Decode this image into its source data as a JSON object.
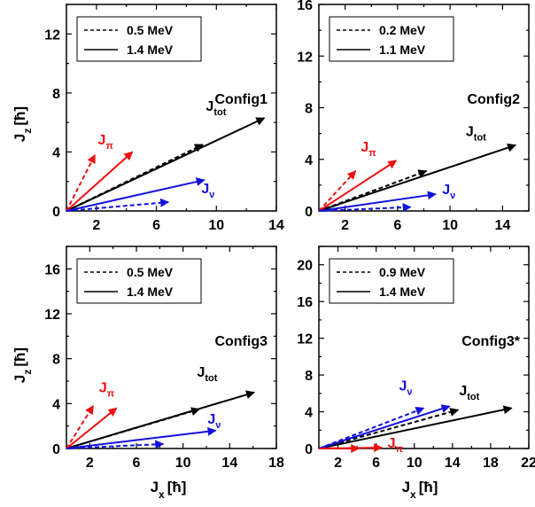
{
  "figure": {
    "ylabel": "J",
    "ylabel_sub": "z",
    "ylabel_unit": "[ħ]",
    "xlabel": "J",
    "xlabel_sub": "x",
    "xlabel_unit": "[ħ]"
  },
  "chart_data": [
    {
      "type": "line",
      "title": "Config1",
      "xlim": [
        0,
        14
      ],
      "ylim": [
        0,
        14
      ],
      "xticks": [
        2,
        6,
        10,
        14
      ],
      "yticks": [
        0,
        4,
        8,
        12
      ],
      "legend": {
        "placement": "top-left",
        "entries": [
          {
            "style": "dashed",
            "label": "0.5 MeV"
          },
          {
            "style": "solid",
            "label": "1.4 MeV"
          }
        ]
      },
      "vectors": [
        {
          "name": "J",
          "sub": "tot",
          "color": "#000000",
          "dashed": [
            9.1,
            4.5
          ],
          "solid": [
            13.2,
            6.3
          ],
          "label_pos": [
            9.3,
            6.8
          ]
        },
        {
          "name": "J",
          "sub": "π",
          "color": "#ee1111",
          "dashed": [
            1.9,
            3.8
          ],
          "solid": [
            4.4,
            4.0
          ],
          "label_pos": [
            2.1,
            4.5
          ]
        },
        {
          "name": "J",
          "sub": "ν",
          "color": "#1111dd",
          "dashed": [
            6.8,
            0.6
          ],
          "solid": [
            9.2,
            2.1
          ],
          "label_pos": [
            9.0,
            1.2
          ]
        }
      ]
    },
    {
      "type": "line",
      "title": "Config2",
      "xlim": [
        0,
        16
      ],
      "ylim": [
        0,
        16
      ],
      "xticks": [
        2,
        6,
        10,
        14
      ],
      "yticks": [
        0,
        4,
        8,
        12,
        16
      ],
      "legend": {
        "placement": "top-left",
        "entries": [
          {
            "style": "dashed",
            "label": "0.2 MeV"
          },
          {
            "style": "solid",
            "label": "1.1 MeV"
          }
        ]
      },
      "vectors": [
        {
          "name": "J",
          "sub": "tot",
          "color": "#000000",
          "dashed": [
            8.2,
            3.1
          ],
          "solid": [
            15.0,
            5.1
          ],
          "label_pos": [
            11.2,
            5.8
          ]
        },
        {
          "name": "J",
          "sub": "π",
          "color": "#ee1111",
          "dashed": [
            2.8,
            3.1
          ],
          "solid": [
            5.9,
            3.9
          ],
          "label_pos": [
            3.2,
            4.6
          ]
        },
        {
          "name": "J",
          "sub": "ν",
          "color": "#1111dd",
          "dashed": [
            7.0,
            0.3
          ],
          "solid": [
            8.9,
            1.3
          ],
          "label_pos": [
            9.4,
            1.3
          ]
        }
      ]
    },
    {
      "type": "line",
      "title": "Config3",
      "xlim": [
        0,
        18
      ],
      "ylim": [
        0,
        18
      ],
      "xticks": [
        2,
        6,
        10,
        14,
        18
      ],
      "yticks": [
        0,
        4,
        8,
        12,
        16
      ],
      "legend": {
        "placement": "top-left",
        "entries": [
          {
            "style": "dashed",
            "label": "0.5 MeV"
          },
          {
            "style": "solid",
            "label": "1.4 MeV"
          }
        ]
      },
      "vectors": [
        {
          "name": "J",
          "sub": "tot",
          "color": "#000000",
          "dashed": [
            11.4,
            3.5
          ],
          "solid": [
            16.1,
            5.0
          ],
          "label_pos": [
            11.2,
            6.4
          ]
        },
        {
          "name": "J",
          "sub": "π",
          "color": "#ee1111",
          "dashed": [
            2.3,
            3.8
          ],
          "solid": [
            4.3,
            3.6
          ],
          "label_pos": [
            2.8,
            5.0
          ]
        },
        {
          "name": "J",
          "sub": "ν",
          "color": "#1111dd",
          "dashed": [
            8.3,
            0.4
          ],
          "solid": [
            12.8,
            1.6
          ],
          "label_pos": [
            12.1,
            2.2
          ]
        }
      ]
    },
    {
      "type": "line",
      "title": "Config3*",
      "xlim": [
        0,
        22
      ],
      "ylim": [
        0,
        22
      ],
      "xticks": [
        2,
        6,
        10,
        14,
        18,
        22
      ],
      "yticks": [
        0,
        4,
        8,
        12,
        16,
        20
      ],
      "legend": {
        "placement": "top-left",
        "entries": [
          {
            "style": "dashed",
            "label": "0.9 MeV"
          },
          {
            "style": "solid",
            "label": "1.4 MeV"
          }
        ]
      },
      "vectors": [
        {
          "name": "J",
          "sub": "tot",
          "color": "#000000",
          "dashed": [
            14.6,
            4.2
          ],
          "solid": [
            20.2,
            4.4
          ],
          "label_pos": [
            14.7,
            5.8
          ]
        },
        {
          "name": "J",
          "sub": "ν",
          "color": "#1111dd",
          "dashed": [
            11.0,
            4.4
          ],
          "solid": [
            13.7,
            4.6
          ],
          "label_pos": [
            8.4,
            6.3
          ]
        },
        {
          "name": "J",
          "sub": "π",
          "color": "#ee1111",
          "dashed": [
            4.2,
            0.0
          ],
          "solid": [
            6.6,
            0.1
          ],
          "label_pos": [
            7.2,
            0.1
          ]
        }
      ]
    }
  ]
}
